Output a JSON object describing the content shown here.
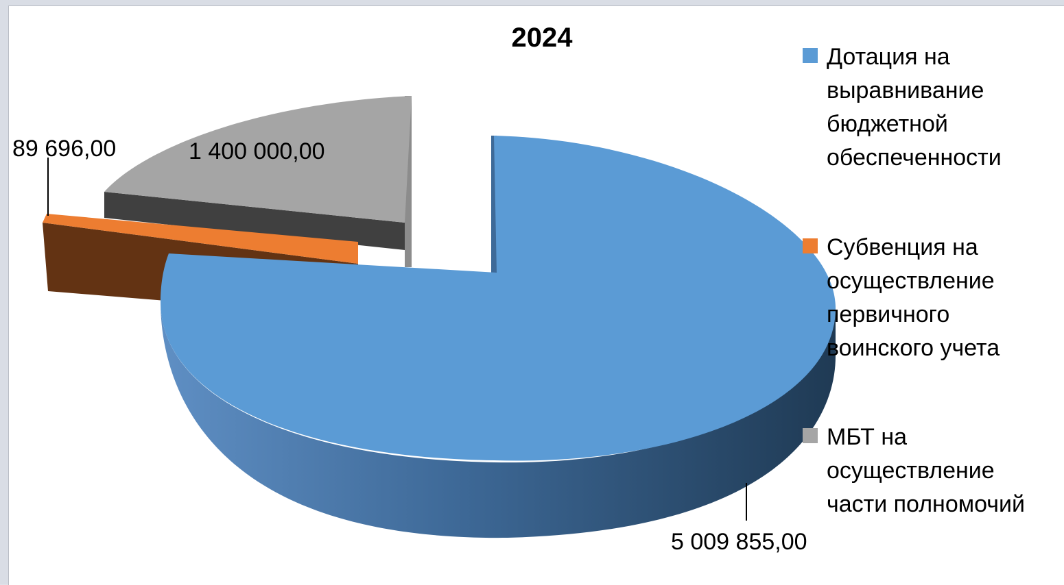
{
  "chart_data": {
    "type": "pie",
    "title": "2024",
    "legend_position": "right",
    "slices": [
      {
        "label": "Дотация на выравнивание бюджетной обеспеченности",
        "legend_lines": [
          "Дотация на",
          "выравнивание",
          "бюджетной",
          "обеспеченности"
        ],
        "value": 5009855.0,
        "value_label": "5 009 855,00",
        "color": "#5b9bd5"
      },
      {
        "label": "Субвенция на осуществление первичного воинского учета",
        "legend_lines": [
          "Субвенция на",
          "осуществление",
          "первичного",
          "воинского учета"
        ],
        "value": 89696.0,
        "value_label": "89 696,00",
        "color": "#ed7d31"
      },
      {
        "label": "МБТ на осуществление части полномочий",
        "legend_lines": [
          "МБТ на",
          "осуществление",
          "части полномочий"
        ],
        "value": 1400000.0,
        "value_label": "1 400 000,00",
        "color": "#a5a5a5"
      }
    ]
  }
}
